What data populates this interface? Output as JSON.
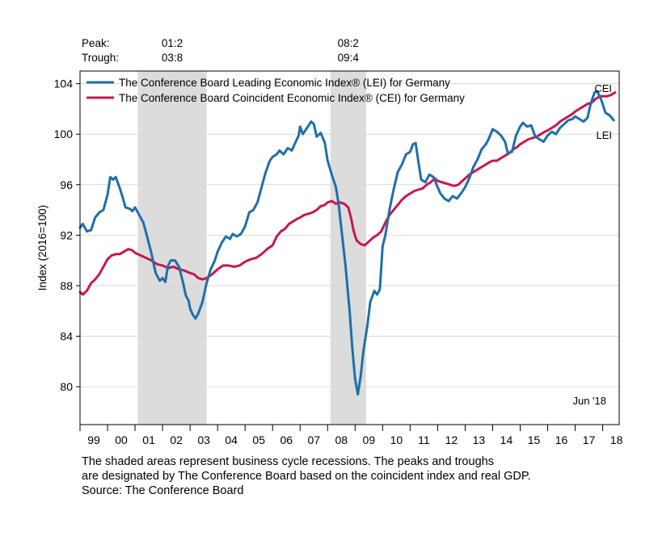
{
  "chart_data": {
    "type": "line",
    "ylabel": "Index (2016=100)",
    "xlabel": "",
    "xlim": [
      1999.0,
      2018.6
    ],
    "ylim": [
      77,
      105
    ],
    "yticks": [
      80,
      84,
      88,
      92,
      96,
      100,
      104
    ],
    "x_tick_labels": [
      {
        "label": "99",
        "year": 1999
      },
      {
        "label": "00",
        "year": 2000
      },
      {
        "label": "01",
        "year": 2001
      },
      {
        "label": "02",
        "year": 2002
      },
      {
        "label": "03",
        "year": 2003
      },
      {
        "label": "04",
        "year": 2004
      },
      {
        "label": "05",
        "year": 2005
      },
      {
        "label": "06",
        "year": 2006
      },
      {
        "label": "07",
        "year": 2007
      },
      {
        "label": "08",
        "year": 2008
      },
      {
        "label": "09",
        "year": 2009
      },
      {
        "label": "10",
        "year": 2010
      },
      {
        "label": "11",
        "year": 2011
      },
      {
        "label": "12",
        "year": 2012
      },
      {
        "label": "13",
        "year": 2013
      },
      {
        "label": "14",
        "year": 2014
      },
      {
        "label": "15",
        "year": 2015
      },
      {
        "label": "16",
        "year": 2016
      },
      {
        "label": "17",
        "year": 2017
      },
      {
        "label": "18",
        "year": 2018
      }
    ],
    "recessions": [
      {
        "peak": "01:2",
        "trough": "03:8",
        "start": 2001.1,
        "end": 2003.6
      },
      {
        "peak": "08:2",
        "trough": "09:4",
        "start": 2008.1,
        "end": 2009.4
      }
    ],
    "peak_label": "Peak:",
    "trough_label": "Trough:",
    "legend_position": "top-left",
    "grid": true,
    "date_label": "Jun '18",
    "series": [
      {
        "name": "The Conference Board Leading Economic Index® (LEI) for Germany",
        "end_label": "LEI",
        "color": "#1f6fa8",
        "points": [
          [
            1999.0,
            92.6
          ],
          [
            1999.1,
            92.9
          ],
          [
            1999.25,
            92.3
          ],
          [
            1999.4,
            92.4
          ],
          [
            1999.55,
            93.4
          ],
          [
            1999.7,
            93.8
          ],
          [
            1999.85,
            94.0
          ],
          [
            2000.0,
            95.2
          ],
          [
            2000.1,
            96.6
          ],
          [
            2000.2,
            96.4
          ],
          [
            2000.3,
            96.6
          ],
          [
            2000.45,
            95.7
          ],
          [
            2000.55,
            95.0
          ],
          [
            2000.65,
            94.2
          ],
          [
            2000.8,
            94.1
          ],
          [
            2000.9,
            93.9
          ],
          [
            2001.0,
            94.2
          ],
          [
            2001.15,
            93.6
          ],
          [
            2001.3,
            93.0
          ],
          [
            2001.45,
            91.8
          ],
          [
            2001.6,
            90.5
          ],
          [
            2001.75,
            89.0
          ],
          [
            2001.9,
            88.4
          ],
          [
            2002.0,
            88.6
          ],
          [
            2002.1,
            88.3
          ],
          [
            2002.2,
            89.6
          ],
          [
            2002.3,
            90.0
          ],
          [
            2002.45,
            90.0
          ],
          [
            2002.6,
            89.5
          ],
          [
            2002.75,
            88.2
          ],
          [
            2002.85,
            87.2
          ],
          [
            2002.95,
            86.8
          ],
          [
            2003.0,
            86.2
          ],
          [
            2003.1,
            85.7
          ],
          [
            2003.2,
            85.4
          ],
          [
            2003.3,
            85.8
          ],
          [
            2003.45,
            86.7
          ],
          [
            2003.6,
            88.2
          ],
          [
            2003.75,
            89.3
          ],
          [
            2003.9,
            90.0
          ],
          [
            2004.0,
            90.7
          ],
          [
            2004.15,
            91.4
          ],
          [
            2004.3,
            91.9
          ],
          [
            2004.45,
            91.7
          ],
          [
            2004.55,
            92.1
          ],
          [
            2004.7,
            91.9
          ],
          [
            2004.85,
            92.1
          ],
          [
            2005.0,
            92.7
          ],
          [
            2005.15,
            93.8
          ],
          [
            2005.3,
            94.0
          ],
          [
            2005.45,
            94.6
          ],
          [
            2005.6,
            95.8
          ],
          [
            2005.75,
            97.0
          ],
          [
            2005.9,
            97.9
          ],
          [
            2006.0,
            98.2
          ],
          [
            2006.15,
            98.4
          ],
          [
            2006.25,
            98.7
          ],
          [
            2006.4,
            98.4
          ],
          [
            2006.55,
            98.9
          ],
          [
            2006.7,
            98.7
          ],
          [
            2006.8,
            99.2
          ],
          [
            2006.95,
            99.9
          ],
          [
            2007.0,
            100.6
          ],
          [
            2007.1,
            100.0
          ],
          [
            2007.25,
            100.5
          ],
          [
            2007.4,
            101.0
          ],
          [
            2007.5,
            100.8
          ],
          [
            2007.6,
            99.8
          ],
          [
            2007.75,
            100.1
          ],
          [
            2007.9,
            99.3
          ],
          [
            2008.0,
            97.9
          ],
          [
            2008.15,
            96.8
          ],
          [
            2008.3,
            95.8
          ],
          [
            2008.4,
            94.5
          ],
          [
            2008.5,
            92.5
          ],
          [
            2008.65,
            89.6
          ],
          [
            2008.8,
            86.0
          ],
          [
            2008.9,
            83.0
          ],
          [
            2009.0,
            80.6
          ],
          [
            2009.1,
            79.4
          ],
          [
            2009.2,
            80.8
          ],
          [
            2009.3,
            82.8
          ],
          [
            2009.45,
            84.9
          ],
          [
            2009.55,
            86.7
          ],
          [
            2009.7,
            87.6
          ],
          [
            2009.8,
            87.3
          ],
          [
            2009.9,
            87.7
          ],
          [
            2010.0,
            91.1
          ],
          [
            2010.1,
            92.0
          ],
          [
            2010.25,
            94.0
          ],
          [
            2010.4,
            95.6
          ],
          [
            2010.55,
            97.0
          ],
          [
            2010.7,
            97.6
          ],
          [
            2010.85,
            98.4
          ],
          [
            2011.0,
            98.6
          ],
          [
            2011.1,
            99.2
          ],
          [
            2011.2,
            99.3
          ],
          [
            2011.3,
            97.8
          ],
          [
            2011.4,
            96.4
          ],
          [
            2011.55,
            96.2
          ],
          [
            2011.7,
            96.8
          ],
          [
            2011.85,
            96.6
          ],
          [
            2012.0,
            95.8
          ],
          [
            2012.1,
            95.3
          ],
          [
            2012.25,
            94.9
          ],
          [
            2012.4,
            94.7
          ],
          [
            2012.55,
            95.1
          ],
          [
            2012.7,
            94.9
          ],
          [
            2012.85,
            95.3
          ],
          [
            2013.0,
            95.8
          ],
          [
            2013.15,
            96.5
          ],
          [
            2013.3,
            97.4
          ],
          [
            2013.45,
            98.0
          ],
          [
            2013.6,
            98.8
          ],
          [
            2013.75,
            99.2
          ],
          [
            2013.85,
            99.6
          ],
          [
            2014.0,
            100.4
          ],
          [
            2014.15,
            100.2
          ],
          [
            2014.3,
            99.9
          ],
          [
            2014.45,
            99.4
          ],
          [
            2014.55,
            98.5
          ],
          [
            2014.7,
            98.6
          ],
          [
            2014.85,
            99.9
          ],
          [
            2015.0,
            100.6
          ],
          [
            2015.1,
            100.9
          ],
          [
            2015.25,
            100.6
          ],
          [
            2015.4,
            100.7
          ],
          [
            2015.55,
            99.8
          ],
          [
            2015.7,
            99.6
          ],
          [
            2015.85,
            99.4
          ],
          [
            2016.0,
            99.9
          ],
          [
            2016.15,
            100.2
          ],
          [
            2016.3,
            100.0
          ],
          [
            2016.45,
            100.5
          ],
          [
            2016.6,
            100.8
          ],
          [
            2016.75,
            101.1
          ],
          [
            2016.9,
            101.2
          ],
          [
            2017.0,
            101.4
          ],
          [
            2017.15,
            101.2
          ],
          [
            2017.3,
            101.0
          ],
          [
            2017.45,
            101.3
          ],
          [
            2017.55,
            102.3
          ],
          [
            2017.7,
            103.3
          ],
          [
            2017.8,
            103.4
          ],
          [
            2017.95,
            102.7
          ],
          [
            2018.1,
            101.7
          ],
          [
            2018.25,
            101.5
          ],
          [
            2018.4,
            101.1
          ]
        ]
      },
      {
        "name": "The Conference Board Coincident Economic Index® (CEI) for Germany",
        "end_label": "CEI",
        "color": "#c8174f",
        "points": [
          [
            1999.0,
            87.5
          ],
          [
            1999.1,
            87.3
          ],
          [
            1999.25,
            87.6
          ],
          [
            1999.4,
            88.2
          ],
          [
            1999.55,
            88.5
          ],
          [
            1999.7,
            88.9
          ],
          [
            1999.85,
            89.5
          ],
          [
            2000.0,
            90.1
          ],
          [
            2000.15,
            90.4
          ],
          [
            2000.3,
            90.5
          ],
          [
            2000.45,
            90.5
          ],
          [
            2000.6,
            90.7
          ],
          [
            2000.75,
            90.9
          ],
          [
            2000.9,
            90.8
          ],
          [
            2001.0,
            90.6
          ],
          [
            2001.2,
            90.4
          ],
          [
            2001.4,
            90.2
          ],
          [
            2001.6,
            90.0
          ],
          [
            2001.8,
            89.7
          ],
          [
            2002.0,
            89.6
          ],
          [
            2002.2,
            89.4
          ],
          [
            2002.4,
            89.5
          ],
          [
            2002.6,
            89.3
          ],
          [
            2002.8,
            89.2
          ],
          [
            2003.0,
            89.0
          ],
          [
            2003.15,
            88.9
          ],
          [
            2003.3,
            88.6
          ],
          [
            2003.45,
            88.5
          ],
          [
            2003.6,
            88.6
          ],
          [
            2003.8,
            88.9
          ],
          [
            2004.0,
            89.3
          ],
          [
            2004.2,
            89.6
          ],
          [
            2004.4,
            89.6
          ],
          [
            2004.6,
            89.5
          ],
          [
            2004.8,
            89.6
          ],
          [
            2005.0,
            89.9
          ],
          [
            2005.2,
            90.1
          ],
          [
            2005.4,
            90.2
          ],
          [
            2005.6,
            90.5
          ],
          [
            2005.8,
            90.9
          ],
          [
            2006.0,
            91.2
          ],
          [
            2006.15,
            91.9
          ],
          [
            2006.3,
            92.3
          ],
          [
            2006.45,
            92.5
          ],
          [
            2006.6,
            92.9
          ],
          [
            2006.75,
            93.1
          ],
          [
            2006.9,
            93.3
          ],
          [
            2007.0,
            93.4
          ],
          [
            2007.15,
            93.6
          ],
          [
            2007.3,
            93.7
          ],
          [
            2007.45,
            93.8
          ],
          [
            2007.6,
            94.0
          ],
          [
            2007.75,
            94.3
          ],
          [
            2007.9,
            94.4
          ],
          [
            2008.0,
            94.6
          ],
          [
            2008.15,
            94.7
          ],
          [
            2008.3,
            94.5
          ],
          [
            2008.45,
            94.6
          ],
          [
            2008.6,
            94.5
          ],
          [
            2008.75,
            94.2
          ],
          [
            2008.85,
            93.4
          ],
          [
            2008.95,
            92.3
          ],
          [
            2009.05,
            91.6
          ],
          [
            2009.2,
            91.3
          ],
          [
            2009.35,
            91.2
          ],
          [
            2009.5,
            91.5
          ],
          [
            2009.65,
            91.8
          ],
          [
            2009.8,
            92.0
          ],
          [
            2009.95,
            92.3
          ],
          [
            2010.1,
            93.0
          ],
          [
            2010.25,
            93.6
          ],
          [
            2010.4,
            94.0
          ],
          [
            2010.55,
            94.4
          ],
          [
            2010.7,
            94.8
          ],
          [
            2010.85,
            95.1
          ],
          [
            2011.0,
            95.3
          ],
          [
            2011.15,
            95.5
          ],
          [
            2011.3,
            95.6
          ],
          [
            2011.45,
            95.7
          ],
          [
            2011.6,
            96.0
          ],
          [
            2011.75,
            96.2
          ],
          [
            2011.9,
            96.5
          ],
          [
            2012.0,
            96.3
          ],
          [
            2012.15,
            96.2
          ],
          [
            2012.3,
            96.1
          ],
          [
            2012.45,
            96.0
          ],
          [
            2012.6,
            95.9
          ],
          [
            2012.75,
            96.0
          ],
          [
            2012.9,
            96.3
          ],
          [
            2013.0,
            96.5
          ],
          [
            2013.15,
            96.8
          ],
          [
            2013.3,
            97.0
          ],
          [
            2013.45,
            97.2
          ],
          [
            2013.6,
            97.4
          ],
          [
            2013.75,
            97.6
          ],
          [
            2013.9,
            97.8
          ],
          [
            2014.0,
            97.9
          ],
          [
            2014.15,
            97.9
          ],
          [
            2014.3,
            98.1
          ],
          [
            2014.45,
            98.3
          ],
          [
            2014.6,
            98.5
          ],
          [
            2014.75,
            98.8
          ],
          [
            2014.9,
            99.0
          ],
          [
            2015.0,
            99.2
          ],
          [
            2015.15,
            99.4
          ],
          [
            2015.3,
            99.6
          ],
          [
            2015.45,
            99.7
          ],
          [
            2015.6,
            99.8
          ],
          [
            2015.75,
            100.0
          ],
          [
            2015.9,
            100.2
          ],
          [
            2016.0,
            100.3
          ],
          [
            2016.15,
            100.5
          ],
          [
            2016.3,
            100.7
          ],
          [
            2016.45,
            101.0
          ],
          [
            2016.6,
            101.2
          ],
          [
            2016.75,
            101.4
          ],
          [
            2016.9,
            101.6
          ],
          [
            2017.0,
            101.8
          ],
          [
            2017.15,
            102.0
          ],
          [
            2017.3,
            102.2
          ],
          [
            2017.45,
            102.4
          ],
          [
            2017.6,
            102.5
          ],
          [
            2017.75,
            102.8
          ],
          [
            2017.9,
            103.0
          ],
          [
            2018.0,
            103.0
          ],
          [
            2018.15,
            103.0
          ],
          [
            2018.3,
            103.1
          ],
          [
            2018.45,
            103.3
          ]
        ]
      }
    ]
  },
  "footnote": {
    "line1": "The shaded areas represent business cycle recessions. The peaks and troughs",
    "line2": "are designated by The Conference Board based on the coincident index and real GDP.",
    "line3": "Source: The Conference Board"
  }
}
